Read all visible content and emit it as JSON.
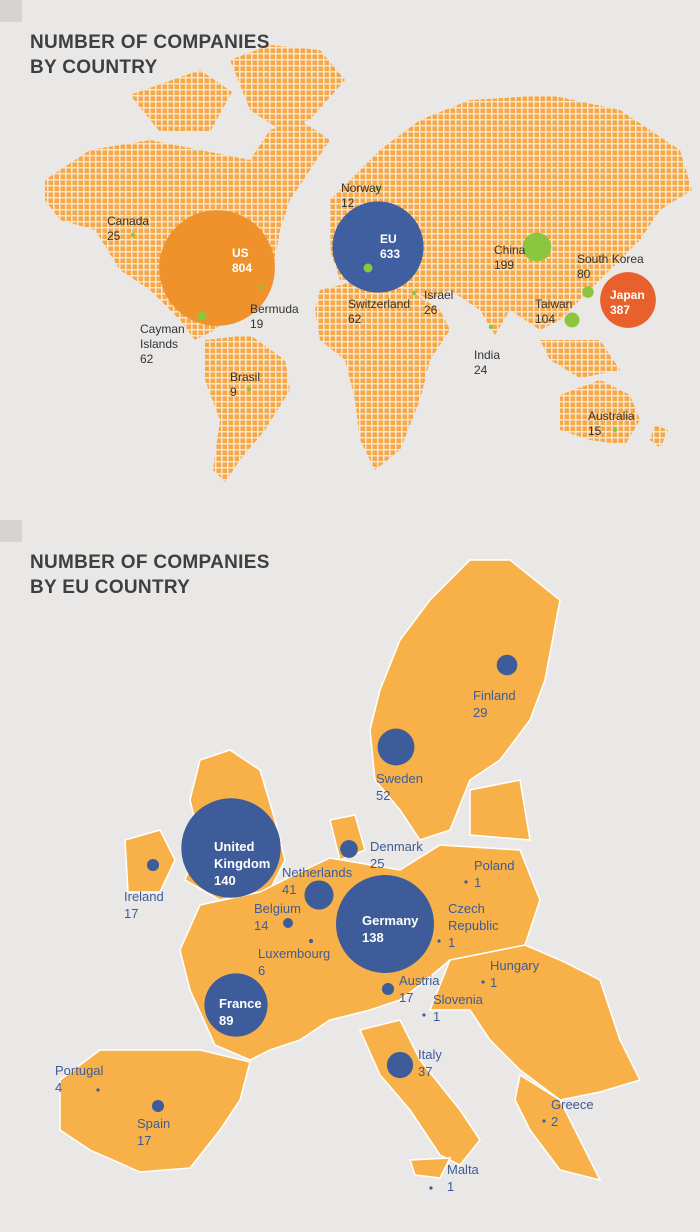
{
  "world_map": {
    "title": [
      "NUMBER OF COMPANIES",
      "BY COUNTRY"
    ],
    "points": [
      {
        "label": "Canada",
        "value": 25,
        "color": "#8cc63f"
      },
      {
        "label": "US",
        "value": 804,
        "color": "#f0922b"
      },
      {
        "label": "Bermuda",
        "value": 19,
        "color": "#8cc63f"
      },
      {
        "label": "Cayman Islands",
        "value": 62,
        "color": "#8cc63f"
      },
      {
        "label": "Brasil",
        "value": 9,
        "color": "#8cc63f"
      },
      {
        "label": "Norway",
        "value": 12,
        "color": "#8cc63f"
      },
      {
        "label": "EU",
        "value": 633,
        "color": "#3f5fa0"
      },
      {
        "label": "Switzerland",
        "value": 62,
        "color": "#8cc63f"
      },
      {
        "label": "Israel",
        "value": 26,
        "color": "#8cc63f"
      },
      {
        "label": "China",
        "value": 199,
        "color": "#8cc63f"
      },
      {
        "label": "South Korea",
        "value": 80,
        "color": "#8cc63f"
      },
      {
        "label": "Japan",
        "value": 387,
        "color": "#e8602c"
      },
      {
        "label": "Taiwan",
        "value": 104,
        "color": "#8cc63f"
      },
      {
        "label": "India",
        "value": 24,
        "color": "#8cc63f"
      },
      {
        "label": "Australia",
        "value": 15,
        "color": "#8cc63f"
      }
    ]
  },
  "eu_map": {
    "title": [
      "NUMBER OF COMPANIES",
      "BY EU COUNTRY"
    ],
    "points": [
      {
        "label": "Finland",
        "value": 29,
        "color": "#3d5c99"
      },
      {
        "label": "Sweden",
        "value": 52,
        "color": "#3d5c99"
      },
      {
        "label": "United Kingdom",
        "value": 140,
        "color": "#3d5c99"
      },
      {
        "label": "Ireland",
        "value": 17,
        "color": "#3d5c99"
      },
      {
        "label": "Denmark",
        "value": 25,
        "color": "#3d5c99"
      },
      {
        "label": "Netherlands",
        "value": 41,
        "color": "#3d5c99"
      },
      {
        "label": "Belgium",
        "value": 14,
        "color": "#3d5c99"
      },
      {
        "label": "Luxembourg",
        "value": 6,
        "color": "#3d5c99"
      },
      {
        "label": "Germany",
        "value": 138,
        "color": "#3d5c99"
      },
      {
        "label": "Poland",
        "value": 1,
        "color": "#3d5c99"
      },
      {
        "label": "Czech Republic",
        "value": 1,
        "color": "#3d5c99"
      },
      {
        "label": "Hungary",
        "value": 1,
        "color": "#3d5c99"
      },
      {
        "label": "Austria",
        "value": 17,
        "color": "#3d5c99"
      },
      {
        "label": "Slovenia",
        "value": 1,
        "color": "#3d5c99"
      },
      {
        "label": "France",
        "value": 89,
        "color": "#3d5c99"
      },
      {
        "label": "Italy",
        "value": 37,
        "color": "#3d5c99"
      },
      {
        "label": "Portugal",
        "value": 4,
        "color": "#3d5c99"
      },
      {
        "label": "Spain",
        "value": 17,
        "color": "#3d5c99"
      },
      {
        "label": "Greece",
        "value": 2,
        "color": "#3d5c99"
      },
      {
        "label": "Malta",
        "value": 1,
        "color": "#3d5c99"
      }
    ]
  }
}
